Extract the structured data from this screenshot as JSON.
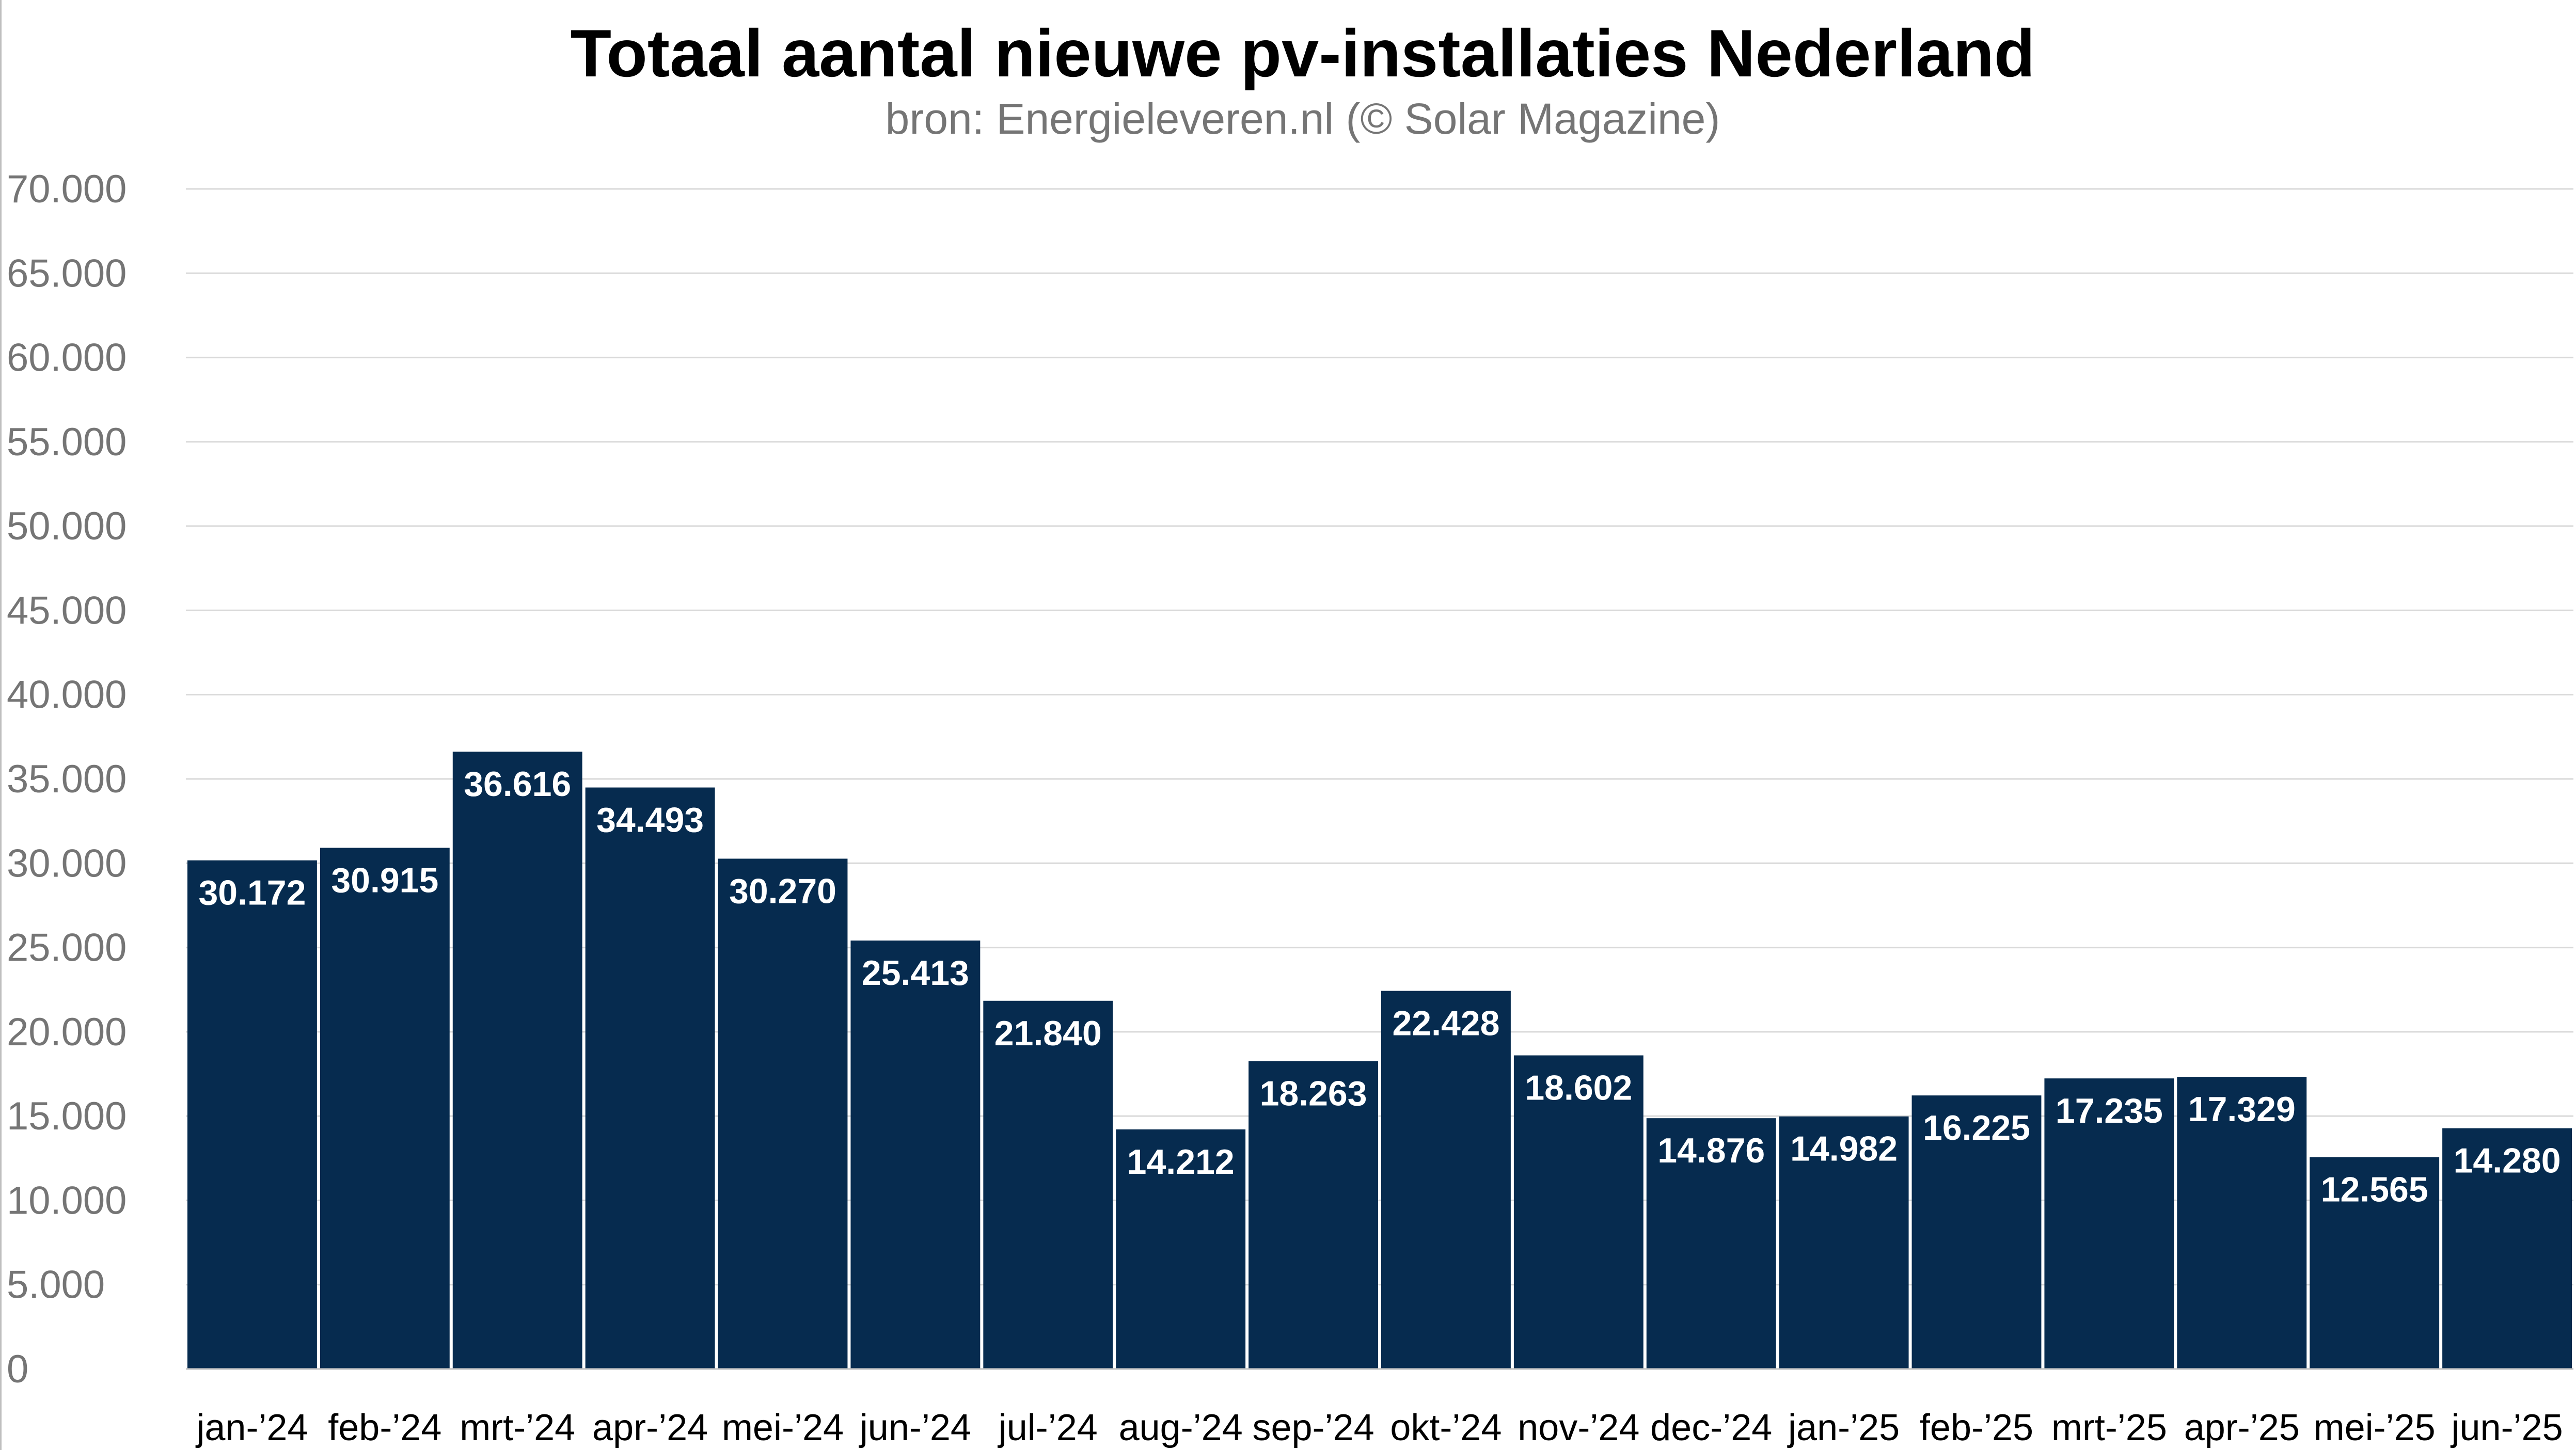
{
  "chart_data": {
    "type": "bar",
    "title": "Totaal aantal nieuwe pv-installaties Nederland",
    "subtitle": "bron: Energieleveren.nl (© Solar Magazine)",
    "xlabel": "",
    "ylabel": "",
    "ylim": [
      0,
      70000
    ],
    "y_ticks": [
      0,
      5000,
      10000,
      15000,
      20000,
      25000,
      30000,
      35000,
      40000,
      45000,
      50000,
      55000,
      60000,
      65000,
      70000
    ],
    "y_tick_labels": [
      "0",
      "5.000",
      "10.000",
      "15.000",
      "20.000",
      "25.000",
      "30.000",
      "35.000",
      "40.000",
      "45.000",
      "50.000",
      "55.000",
      "60.000",
      "65.000",
      "70.000"
    ],
    "grid": true,
    "bar_color": "#062b4f",
    "categories": [
      "jan-’24",
      "feb-’24",
      "mrt-’24",
      "apr-’24",
      "mei-’24",
      "jun-’24",
      "jul-’24",
      "aug-’24",
      "sep-’24",
      "okt-’24",
      "nov-’24",
      "dec-’24",
      "jan-’25",
      "feb-’25",
      "mrt-’25",
      "apr-’25",
      "mei-’25",
      "jun-’25"
    ],
    "values": [
      30172,
      30915,
      36616,
      34493,
      30270,
      25413,
      21840,
      14212,
      18263,
      22428,
      18602,
      14876,
      14982,
      16225,
      17235,
      17329,
      12565,
      14280
    ],
    "value_labels": [
      "30.172",
      "30.915",
      "36.616",
      "34.493",
      "30.270",
      "25.413",
      "21.840",
      "14.212",
      "18.263",
      "22.428",
      "18.602",
      "14.876",
      "14.982",
      "16.225",
      "17.235",
      "17.329",
      "12.565",
      "14.280"
    ]
  }
}
